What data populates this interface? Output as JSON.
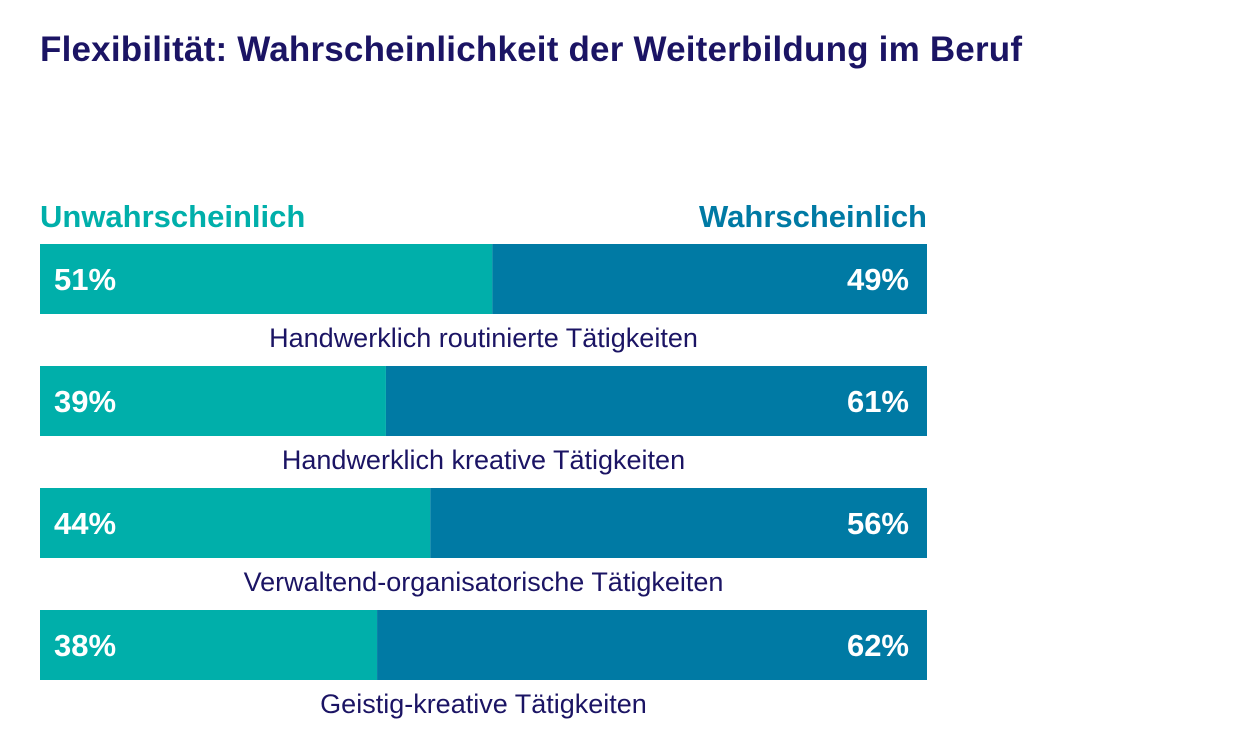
{
  "chart_data": {
    "type": "bar",
    "orientation": "horizontal",
    "stacked": true,
    "normalized": true,
    "title": "Flexibilität: Wahrscheinlichkeit der Weiterbildung im Beruf",
    "legend": {
      "placement": "top",
      "entries": [
        "Unwahrscheinlich",
        "Wahrscheinlich"
      ]
    },
    "categories": [
      "Handwerklich routinierte Tätigkeiten",
      "Handwerklich kreative Tätigkeiten",
      "Verwaltend-organisatorische Tätigkeiten",
      "Geistig-kreative Tätigkeiten"
    ],
    "series": [
      {
        "name": "Unwahrscheinlich",
        "values": [
          51,
          39,
          44,
          38
        ],
        "labels": [
          "51%",
          "39%",
          "44%",
          "38%"
        ],
        "color": "#00afaa"
      },
      {
        "name": "Wahrscheinlich",
        "values": [
          49,
          61,
          56,
          62
        ],
        "labels": [
          "49%",
          "61%",
          "56%",
          "62%"
        ],
        "color": "#007aa4"
      }
    ],
    "xlim": [
      0,
      100
    ],
    "xlabel": "",
    "ylabel": "",
    "grid": false
  },
  "colors": {
    "title": "#1b1464",
    "unlikely": "#00afaa",
    "likely": "#007aa4",
    "category_label": "#1b1464",
    "value_label": "#ffffff"
  }
}
